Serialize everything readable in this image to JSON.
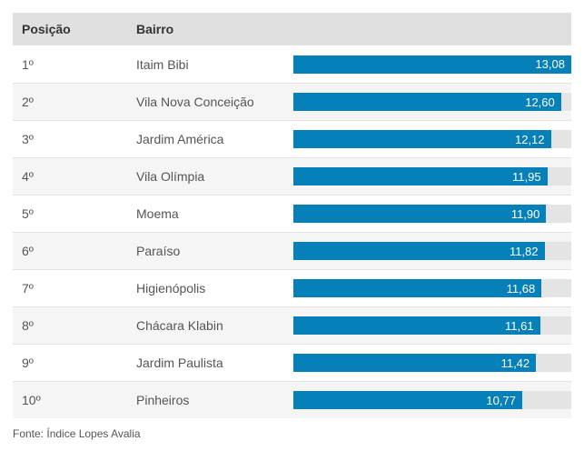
{
  "table": {
    "columns": {
      "position": "Posição",
      "neighborhood": "Bairro"
    },
    "rows": [
      {
        "position": "1º",
        "neighborhood": "Itaim Bibi",
        "value": "13,08",
        "value_num": 13.08
      },
      {
        "position": "2º",
        "neighborhood": "Vila Nova Conceição",
        "value": "12,60",
        "value_num": 12.6
      },
      {
        "position": "3º",
        "neighborhood": "Jardim América",
        "value": "12,12",
        "value_num": 12.12
      },
      {
        "position": "4º",
        "neighborhood": "Vila Olímpia",
        "value": "11,95",
        "value_num": 11.95
      },
      {
        "position": "5º",
        "neighborhood": "Moema",
        "value": "11,90",
        "value_num": 11.9
      },
      {
        "position": "6º",
        "neighborhood": "Paraíso",
        "value": "11,82",
        "value_num": 11.82
      },
      {
        "position": "7º",
        "neighborhood": "Higienópolis",
        "value": "11,68",
        "value_num": 11.68
      },
      {
        "position": "8º",
        "neighborhood": "Chácara Klabin",
        "value": "11,61",
        "value_num": 11.61
      },
      {
        "position": "9º",
        "neighborhood": "Jardim Paulista",
        "value": "11,42",
        "value_num": 11.42
      },
      {
        "position": "10º",
        "neighborhood": "Pinheiros",
        "value": "10,77",
        "value_num": 10.77
      }
    ]
  },
  "footer": {
    "source": "Fonte: Índice Lopes Avalia"
  },
  "colors": {
    "bar": "#0680b8",
    "track": "#e4e4e4",
    "header_bg": "#e0e0e0",
    "row_alt_bg": "#f5f5f5",
    "border": "#e2e2e2",
    "value_text": "#ffffff"
  },
  "chart_data": {
    "type": "bar",
    "orientation": "horizontal",
    "categories": [
      "Itaim Bibi",
      "Vila Nova Conceição",
      "Jardim América",
      "Vila Olímpia",
      "Moema",
      "Paraíso",
      "Higienópolis",
      "Chácara Klabin",
      "Jardim Paulista",
      "Pinheiros"
    ],
    "positions": [
      "1º",
      "2º",
      "3º",
      "4º",
      "5º",
      "6º",
      "7º",
      "8º",
      "9º",
      "10º"
    ],
    "values": [
      13.08,
      12.6,
      12.12,
      11.95,
      11.9,
      11.82,
      11.68,
      11.61,
      11.42,
      10.77
    ],
    "value_labels": [
      "13,08",
      "12,60",
      "12,12",
      "11,95",
      "11,90",
      "11,82",
      "11,68",
      "11,61",
      "11,42",
      "10,77"
    ],
    "title": "",
    "xlabel": "",
    "ylabel": "",
    "xlim": [
      0,
      13.08
    ],
    "grid": false,
    "legend": false,
    "source": "Fonte: Índice Lopes Avalia"
  }
}
